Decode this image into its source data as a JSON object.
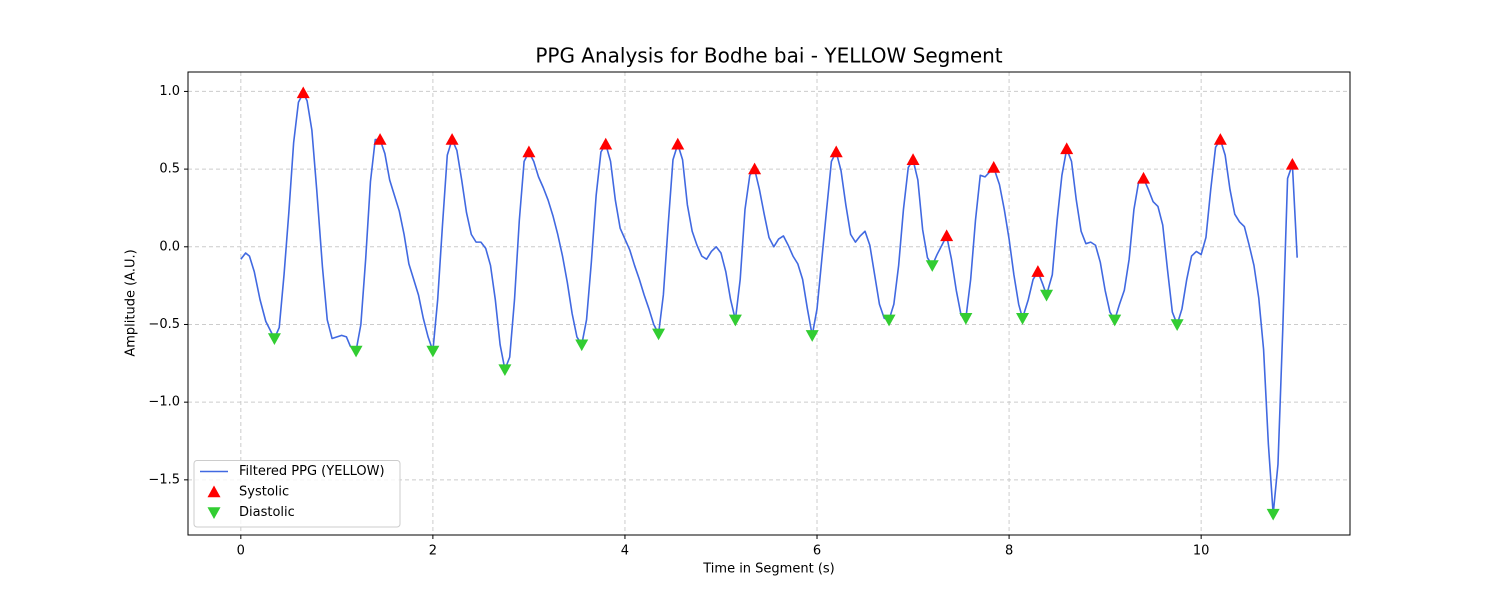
{
  "chart_data": {
    "type": "line",
    "title": "PPG Analysis for Bodhe bai - YELLOW Segment",
    "x_label": "Time in Segment (s)",
    "y_label": "Amplitude (A.U.)",
    "xlim": [
      -0.55,
      11.55
    ],
    "ylim": [
      -1.855,
      1.125
    ],
    "xticks": [
      0,
      2,
      4,
      6,
      8,
      10
    ],
    "yticks": [
      {
        "value": -1.5,
        "label": "−1.5"
      },
      {
        "value": -1.0,
        "label": "−1.0"
      },
      {
        "value": -0.5,
        "label": "−0.5"
      },
      {
        "value": 0,
        "label": "0.0"
      },
      0.5,
      {
        "value": 1.0,
        "label": "1.0"
      }
    ],
    "grid": true,
    "legend": "lower left",
    "series": [
      {
        "name": "Filtered PPG (YELLOW)",
        "marker": "line",
        "color": "#4169e1",
        "x": [
          0,
          0.05,
          0.09,
          0.14,
          0.2,
          0.26,
          0.35,
          0.4,
          0.45,
          0.5,
          0.55,
          0.6,
          0.65,
          0.69,
          0.74,
          0.79,
          0.85,
          0.9,
          0.95,
          1.05,
          1.1,
          1.14,
          1.2,
          1.25,
          1.3,
          1.35,
          1.4,
          1.45,
          1.5,
          1.55,
          1.6,
          1.65,
          1.7,
          1.75,
          1.8,
          1.85,
          1.9,
          1.95,
          2.0,
          2.05,
          2.1,
          2.15,
          2.2,
          2.25,
          2.3,
          2.35,
          2.4,
          2.45,
          2.5,
          2.55,
          2.6,
          2.65,
          2.7,
          2.75,
          2.8,
          2.85,
          2.9,
          2.95,
          3.0,
          3.05,
          3.1,
          3.15,
          3.2,
          3.25,
          3.3,
          3.35,
          3.4,
          3.45,
          3.5,
          3.55,
          3.6,
          3.65,
          3.7,
          3.75,
          3.8,
          3.85,
          3.9,
          3.95,
          4.0,
          4.05,
          4.1,
          4.15,
          4.2,
          4.25,
          4.3,
          4.35,
          4.4,
          4.45,
          4.5,
          4.55,
          4.6,
          4.65,
          4.7,
          4.75,
          4.8,
          4.85,
          4.9,
          4.95,
          5.0,
          5.05,
          5.1,
          5.15,
          5.2,
          5.25,
          5.3,
          5.35,
          5.4,
          5.45,
          5.5,
          5.55,
          5.6,
          5.65,
          5.7,
          5.75,
          5.8,
          5.85,
          5.9,
          5.95,
          6.0,
          6.05,
          6.1,
          6.15,
          6.2,
          6.25,
          6.3,
          6.35,
          6.4,
          6.45,
          6.5,
          6.55,
          6.6,
          6.65,
          6.7,
          6.75,
          6.8,
          6.85,
          6.9,
          6.95,
          7.0,
          7.05,
          7.1,
          7.15,
          7.2,
          7.25,
          7.3,
          7.35,
          7.4,
          7.45,
          7.5,
          7.55,
          7.6,
          7.65,
          7.7,
          7.75,
          7.84,
          7.9,
          7.95,
          8.0,
          8.05,
          8.1,
          8.14,
          8.2,
          8.25,
          8.3,
          8.35,
          8.39,
          8.45,
          8.5,
          8.55,
          8.6,
          8.65,
          8.7,
          8.75,
          8.8,
          8.85,
          8.9,
          8.95,
          9.0,
          9.05,
          9.1,
          9.15,
          9.2,
          9.25,
          9.3,
          9.35,
          9.4,
          9.45,
          9.5,
          9.55,
          9.6,
          9.65,
          9.7,
          9.75,
          9.8,
          9.85,
          9.9,
          9.95,
          10.0,
          10.05,
          10.1,
          10.15,
          10.2,
          10.25,
          10.3,
          10.35,
          10.4,
          10.45,
          10.5,
          10.55,
          10.6,
          10.65,
          10.7,
          10.75,
          10.8,
          10.85,
          10.9,
          10.95,
          11.0
        ],
        "values": [
          -0.08,
          -0.04,
          -0.06,
          -0.16,
          -0.34,
          -0.48,
          -0.59,
          -0.52,
          -0.18,
          0.22,
          0.67,
          0.93,
          0.99,
          0.94,
          0.75,
          0.37,
          -0.13,
          -0.47,
          -0.59,
          -0.57,
          -0.58,
          -0.64,
          -0.67,
          -0.5,
          -0.08,
          0.42,
          0.69,
          0.69,
          0.6,
          0.43,
          0.33,
          0.23,
          0.08,
          -0.11,
          -0.21,
          -0.31,
          -0.46,
          -0.58,
          -0.67,
          -0.34,
          0.14,
          0.59,
          0.69,
          0.62,
          0.43,
          0.22,
          0.08,
          0.03,
          0.03,
          -0.01,
          -0.12,
          -0.34,
          -0.63,
          -0.79,
          -0.71,
          -0.34,
          0.17,
          0.55,
          0.61,
          0.55,
          0.45,
          0.38,
          0.3,
          0.2,
          0.08,
          -0.06,
          -0.23,
          -0.43,
          -0.58,
          -0.63,
          -0.47,
          -0.1,
          0.33,
          0.61,
          0.66,
          0.55,
          0.3,
          0.12,
          0.05,
          -0.02,
          -0.12,
          -0.21,
          -0.31,
          -0.4,
          -0.5,
          -0.56,
          -0.31,
          0.14,
          0.56,
          0.66,
          0.56,
          0.27,
          0.1,
          0.01,
          -0.06,
          -0.08,
          -0.03,
          0.0,
          -0.04,
          -0.16,
          -0.34,
          -0.47,
          -0.21,
          0.24,
          0.46,
          0.5,
          0.37,
          0.21,
          0.06,
          0.0,
          0.05,
          0.07,
          0.01,
          -0.06,
          -0.11,
          -0.21,
          -0.4,
          -0.57,
          -0.4,
          -0.08,
          0.24,
          0.55,
          0.61,
          0.49,
          0.27,
          0.08,
          0.03,
          0.07,
          0.1,
          0.01,
          -0.18,
          -0.37,
          -0.46,
          -0.47,
          -0.37,
          -0.12,
          0.24,
          0.51,
          0.56,
          0.43,
          0.11,
          -0.07,
          -0.12,
          -0.05,
          0.01,
          0.07,
          -0.08,
          -0.28,
          -0.44,
          -0.46,
          -0.21,
          0.17,
          0.46,
          0.45,
          0.51,
          0.4,
          0.24,
          0.05,
          -0.18,
          -0.37,
          -0.46,
          -0.34,
          -0.21,
          -0.16,
          -0.24,
          -0.31,
          -0.18,
          0.17,
          0.46,
          0.63,
          0.55,
          0.3,
          0.1,
          0.02,
          0.03,
          0.01,
          -0.1,
          -0.28,
          -0.42,
          -0.47,
          -0.37,
          -0.28,
          -0.08,
          0.24,
          0.42,
          0.44,
          0.37,
          0.29,
          0.26,
          0.14,
          -0.15,
          -0.42,
          -0.5,
          -0.4,
          -0.21,
          -0.06,
          -0.03,
          -0.05,
          0.06,
          0.37,
          0.64,
          0.69,
          0.59,
          0.37,
          0.21,
          0.16,
          0.13,
          0.01,
          -0.12,
          -0.33,
          -0.66,
          -1.27,
          -1.72,
          -1.4,
          -0.53,
          0.44,
          0.53,
          -0.07
        ]
      },
      {
        "name": "Systolic",
        "marker": "triangle-up",
        "color": "#ff0000",
        "x": [
          0.65,
          1.45,
          2.2,
          3.0,
          3.8,
          4.55,
          5.35,
          6.2,
          7.0,
          7.35,
          7.84,
          8.3,
          8.6,
          9.4,
          10.2,
          10.95
        ],
        "values": [
          0.99,
          0.69,
          0.69,
          0.61,
          0.66,
          0.66,
          0.5,
          0.61,
          0.56,
          0.07,
          0.51,
          -0.16,
          0.63,
          0.44,
          0.69,
          0.53
        ]
      },
      {
        "name": "Diastolic",
        "marker": "triangle-down",
        "color": "#32cd32",
        "x": [
          0.35,
          1.2,
          2.0,
          2.75,
          3.55,
          4.35,
          5.15,
          5.95,
          6.75,
          7.2,
          7.55,
          8.14,
          8.39,
          9.1,
          9.75,
          10.75
        ],
        "values": [
          -0.59,
          -0.67,
          -0.67,
          -0.79,
          -0.63,
          -0.56,
          -0.47,
          -0.57,
          -0.47,
          -0.12,
          -0.46,
          -0.46,
          -0.31,
          -0.47,
          -0.5,
          -1.72
        ]
      }
    ]
  }
}
